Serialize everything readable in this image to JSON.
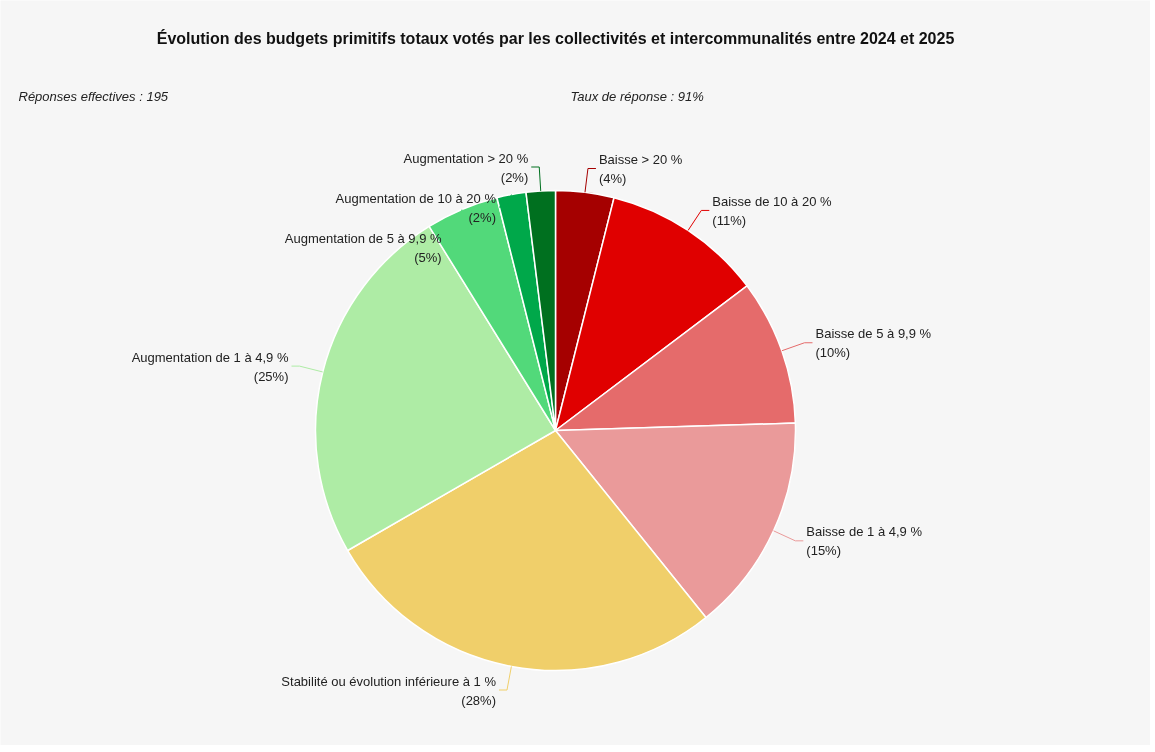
{
  "chart_data": {
    "type": "pie",
    "title": "Évolution des budgets primitifs totaux votés par les collectivités et intercommunalités entre 2024 et 2025",
    "annotations": [
      "Réponses effectives : 195",
      "Taux de réponse : 91%"
    ],
    "categories": [
      "Baisse > 20 %",
      "Baisse de 10 à 20 %",
      "Baisse de 5 à 9,9 %",
      "Baisse de 1 à 4,9 %",
      "Stabilité ou évolution inférieure à 1 %",
      "Augmentation de 1 à 4,9 %",
      "Augmentation de 5 à 9,9 %",
      "Augmentation de 10 à 20 %",
      "Augmentation > 20 %"
    ],
    "values": [
      4,
      11,
      10,
      15,
      28,
      25,
      5,
      2,
      2
    ],
    "colors": [
      "#a50000",
      "#e00000",
      "#e56b6b",
      "#ea9a9a",
      "#f0cf6a",
      "#aeeca5",
      "#52d97a",
      "#00a84a",
      "#00701f"
    ],
    "value_labels": [
      "(4%)",
      "(11%)",
      "(10%)",
      "(15%)",
      "(28%)",
      "(25%)",
      "(5%)",
      "(2%)",
      "(2%)"
    ]
  }
}
